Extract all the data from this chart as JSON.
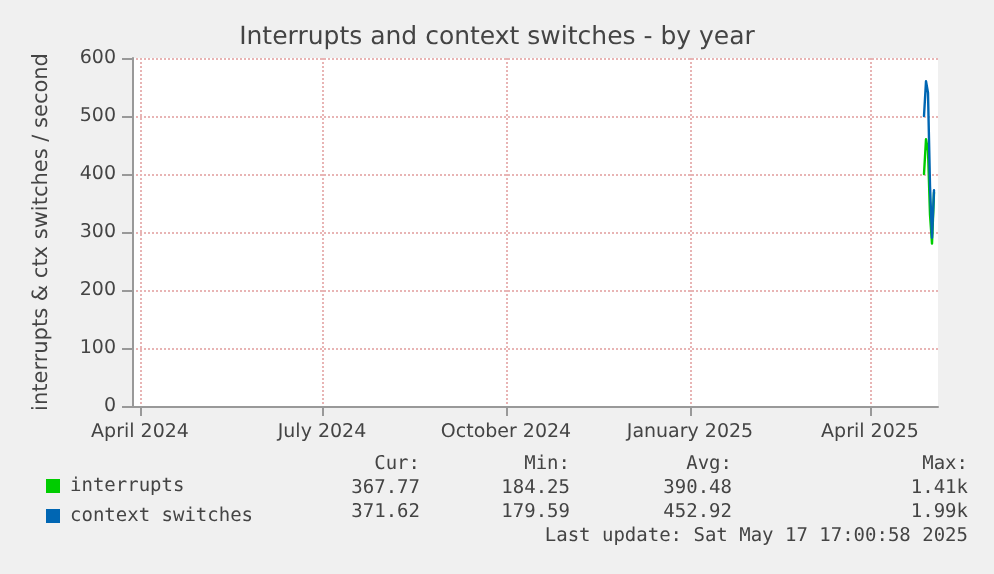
{
  "chart_data": {
    "type": "line",
    "title": "Interrupts and context switches - by year",
    "ylabel": "interrupts & ctx switches / second",
    "xlim": [
      "2024-03-28",
      "2025-05-05"
    ],
    "xticks": [
      {
        "value": "2024-04-01",
        "label": "April 2024"
      },
      {
        "value": "2024-07-01",
        "label": "July 2024"
      },
      {
        "value": "2024-10-01",
        "label": "October 2024"
      },
      {
        "value": "2025-01-01",
        "label": "January 2025"
      },
      {
        "value": "2025-04-01",
        "label": "April 2025"
      }
    ],
    "ylim": [
      0,
      600
    ],
    "yticks": [
      0,
      100,
      200,
      300,
      400,
      500,
      600
    ],
    "series": [
      {
        "name": "interrupts",
        "color": "#00cc00",
        "x": [
          "2025-04-28",
          "2025-04-29",
          "2025-04-30",
          "2025-05-01",
          "2025-05-02",
          "2025-05-03"
        ],
        "values": [
          400,
          460,
          440,
          330,
          280,
          368
        ]
      },
      {
        "name": "context switches",
        "color": "#0066b3",
        "x": [
          "2025-04-28",
          "2025-04-29",
          "2025-04-30",
          "2025-05-01",
          "2025-05-02",
          "2025-05-03"
        ],
        "values": [
          500,
          560,
          540,
          380,
          290,
          372
        ]
      }
    ],
    "annotations": [
      "Cur:",
      "Min:",
      "Avg:",
      "Max:",
      "367.77",
      "184.25",
      "390.48",
      "1.41k",
      "371.62",
      "179.59",
      "452.92",
      "1.99k",
      "Last update: Sat May 17 17:00:58 2025"
    ],
    "grid": true,
    "legend": "bottom left",
    "marker": "none",
    "line_style": "solid"
  }
}
